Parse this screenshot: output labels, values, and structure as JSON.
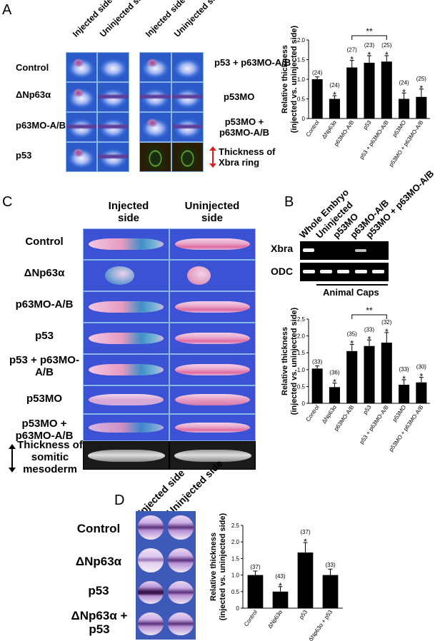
{
  "panels": {
    "A": {
      "letter": "A",
      "col_labels": [
        "Injected side",
        "Uninjected side"
      ],
      "left_rows": [
        "Control",
        "ΔNp63α",
        "p63MO-A/B",
        "p53"
      ],
      "right_rows": [
        "p53 + p63MO-A/B",
        "p53MO",
        "p53MO + p63MO-A/B",
        "Thickness of Xbra ring"
      ]
    },
    "B": {
      "letter": "B",
      "gel_lanes": [
        "Whole Embryo",
        "Uninjected",
        "p53MO",
        "p63MO-A/B",
        "p53MO + p63MO-A/B"
      ],
      "gel_rows": [
        "Xbra",
        "ODC"
      ],
      "gel_caption": "Animal Caps"
    },
    "C": {
      "letter": "C",
      "col_labels": [
        "Injected side",
        "Uninjected side"
      ],
      "rows": [
        "Control",
        "ΔNp63α",
        "p63MO-A/B",
        "p53",
        "p53 + p63MO-A/B",
        "p53MO",
        "p53MO + p63MO-A/B",
        "Thickness of somitic mesoderm"
      ]
    },
    "D": {
      "letter": "D",
      "col_labels": [
        "Injected side",
        "Uninjected side"
      ],
      "rows": [
        "Control",
        "ΔNp63α",
        "p53",
        "ΔNp63α + p53"
      ]
    }
  },
  "chart_data": [
    {
      "panel": "A",
      "type": "bar",
      "ylabel": "Relative thickness (injected vs. uninjected side)",
      "categories": [
        "Control",
        "ΔNp63α",
        "p63MO-A/B",
        "p53",
        "p53 + p63MO-A/B",
        "p53MO",
        "p53MO + p63MO-A/B"
      ],
      "values": [
        1.0,
        0.5,
        1.3,
        1.42,
        1.45,
        0.5,
        0.55
      ],
      "errors": [
        0.06,
        0.08,
        0.18,
        0.18,
        0.15,
        0.15,
        0.2
      ],
      "n_labels": [
        "(24)",
        "(24)",
        "(27)",
        "(23)",
        "(25)",
        "(24)",
        "(25)"
      ],
      "significant": [
        false,
        true,
        true,
        true,
        true,
        true,
        true
      ],
      "bracket": {
        "from": 2,
        "to": 4,
        "label": "**"
      },
      "ylim": [
        0,
        2.0
      ],
      "yticks": [
        "0",
        "0.5",
        "1.0",
        "1.5",
        "2.0"
      ]
    },
    {
      "panel": "B",
      "type": "bar",
      "ylabel": "Relative thickness (injected vs. uninjected side)",
      "categories": [
        "Control",
        "ΔNp63α",
        "p63MO-A/B",
        "p53",
        "p53 + p63MO-A/B",
        "p53MO",
        "p53MO + p63MO-A/B"
      ],
      "values": [
        1.03,
        0.48,
        1.55,
        1.7,
        1.8,
        0.55,
        0.62
      ],
      "errors": [
        0.08,
        0.12,
        0.2,
        0.18,
        0.3,
        0.15,
        0.15
      ],
      "n_labels": [
        "(33)",
        "(36)",
        "(35)",
        "(33)",
        "(32)",
        "(33)",
        "(30)"
      ],
      "significant": [
        false,
        true,
        true,
        true,
        true,
        true,
        true
      ],
      "bracket": {
        "from": 2,
        "to": 4,
        "label": "**"
      },
      "ylim": [
        0,
        2.5
      ],
      "yticks": [
        "0",
        "0.5",
        "1.0",
        "1.5",
        "2.0",
        "2.5"
      ]
    },
    {
      "panel": "D",
      "type": "bar",
      "ylabel": "Relative thickness (injected vs. uninjected side)",
      "categories": [
        "Control",
        "ΔNp63α",
        "p53",
        "ΔNp63α + p53"
      ],
      "values": [
        1.0,
        0.5,
        1.68,
        1.0
      ],
      "errors": [
        0.12,
        0.15,
        0.3,
        0.18
      ],
      "n_labels": [
        "(37)",
        "(43)",
        "(37)",
        "(33)"
      ],
      "significant": [
        false,
        true,
        true,
        false
      ],
      "bracket": null,
      "ylim": [
        0,
        2.5
      ],
      "yticks": [
        "0",
        "0.5",
        "1.0",
        "1.5",
        "2.0",
        "2.5"
      ]
    }
  ]
}
